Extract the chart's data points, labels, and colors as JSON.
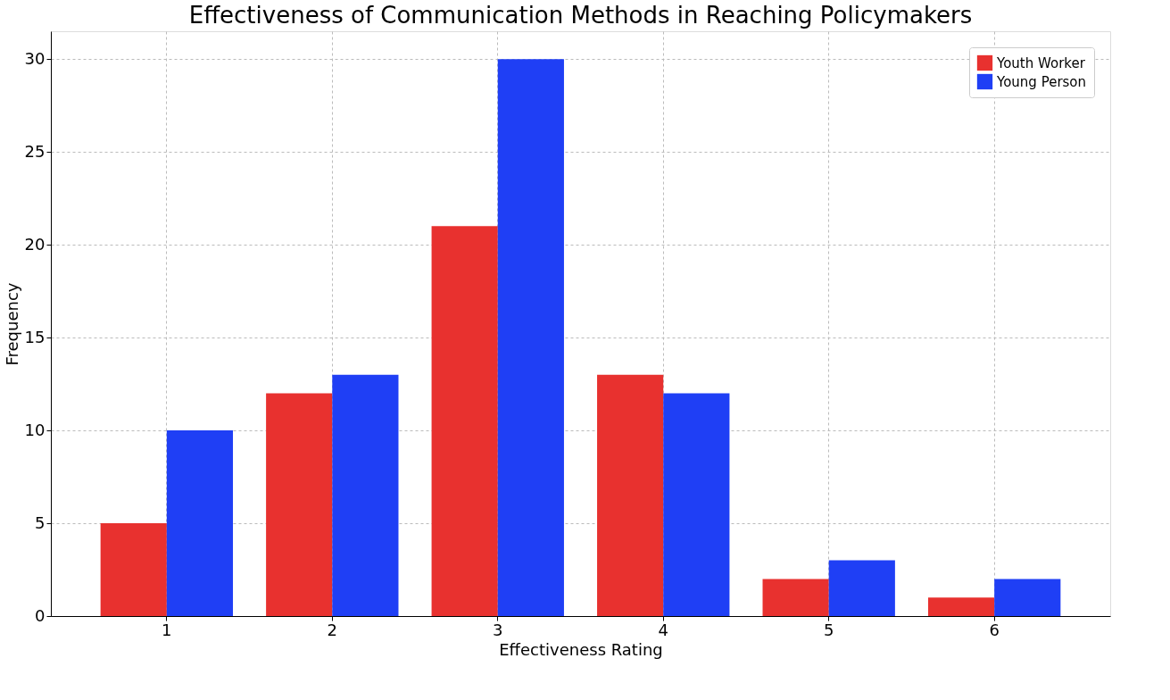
{
  "chart_data": {
    "type": "bar",
    "title": "Effectiveness of Communication Methods in Reaching Policymakers",
    "xlabel": "Effectiveness Rating",
    "ylabel": "Frequency",
    "categories": [
      "1",
      "2",
      "3",
      "4",
      "5",
      "6"
    ],
    "series": [
      {
        "name": "Youth Worker",
        "color": "#e8312f",
        "values": [
          5,
          12,
          21,
          13,
          2,
          1
        ]
      },
      {
        "name": "Young Person",
        "color": "#1f3ff5",
        "values": [
          10,
          13,
          30,
          12,
          3,
          2
        ]
      }
    ],
    "ylim": [
      0,
      31.5
    ],
    "yticks": [
      0,
      5,
      10,
      15,
      20,
      25,
      30
    ],
    "grid": true,
    "legend": "top right"
  }
}
